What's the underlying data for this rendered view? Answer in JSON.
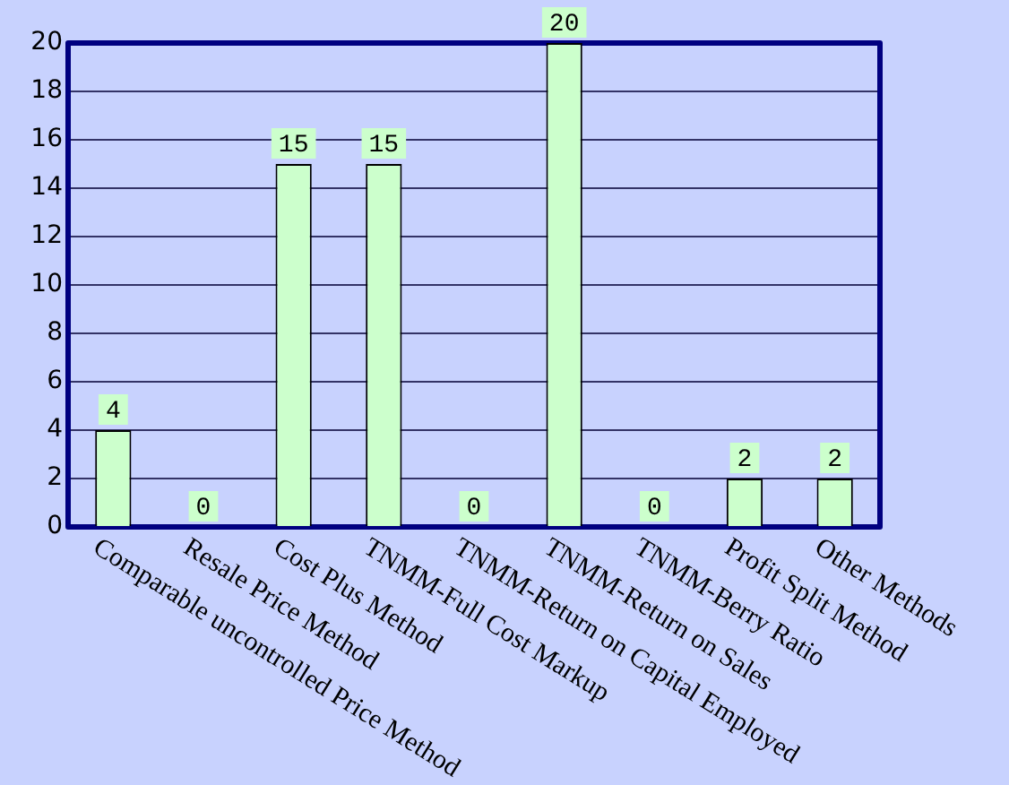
{
  "chart_data": {
    "type": "bar",
    "categories": [
      "Comparable uncontrolled Price Method",
      "Resale Price Method",
      "Cost Plus Method",
      "TNMM-Full Cost Markup",
      "TNMM-Return on Capital Employed",
      "TNMM-Return on Sales",
      "TNMM-Berry Ratio",
      "Profit Split Method",
      "Other Methods"
    ],
    "values": [
      4,
      0,
      15,
      15,
      0,
      20,
      0,
      2,
      2
    ],
    "color": "#ccffcc",
    "ylim": [
      0,
      20
    ],
    "yticks": [
      0,
      2,
      4,
      6,
      8,
      10,
      12,
      14,
      16,
      18,
      20
    ],
    "grid": "y",
    "data_labels": true
  }
}
